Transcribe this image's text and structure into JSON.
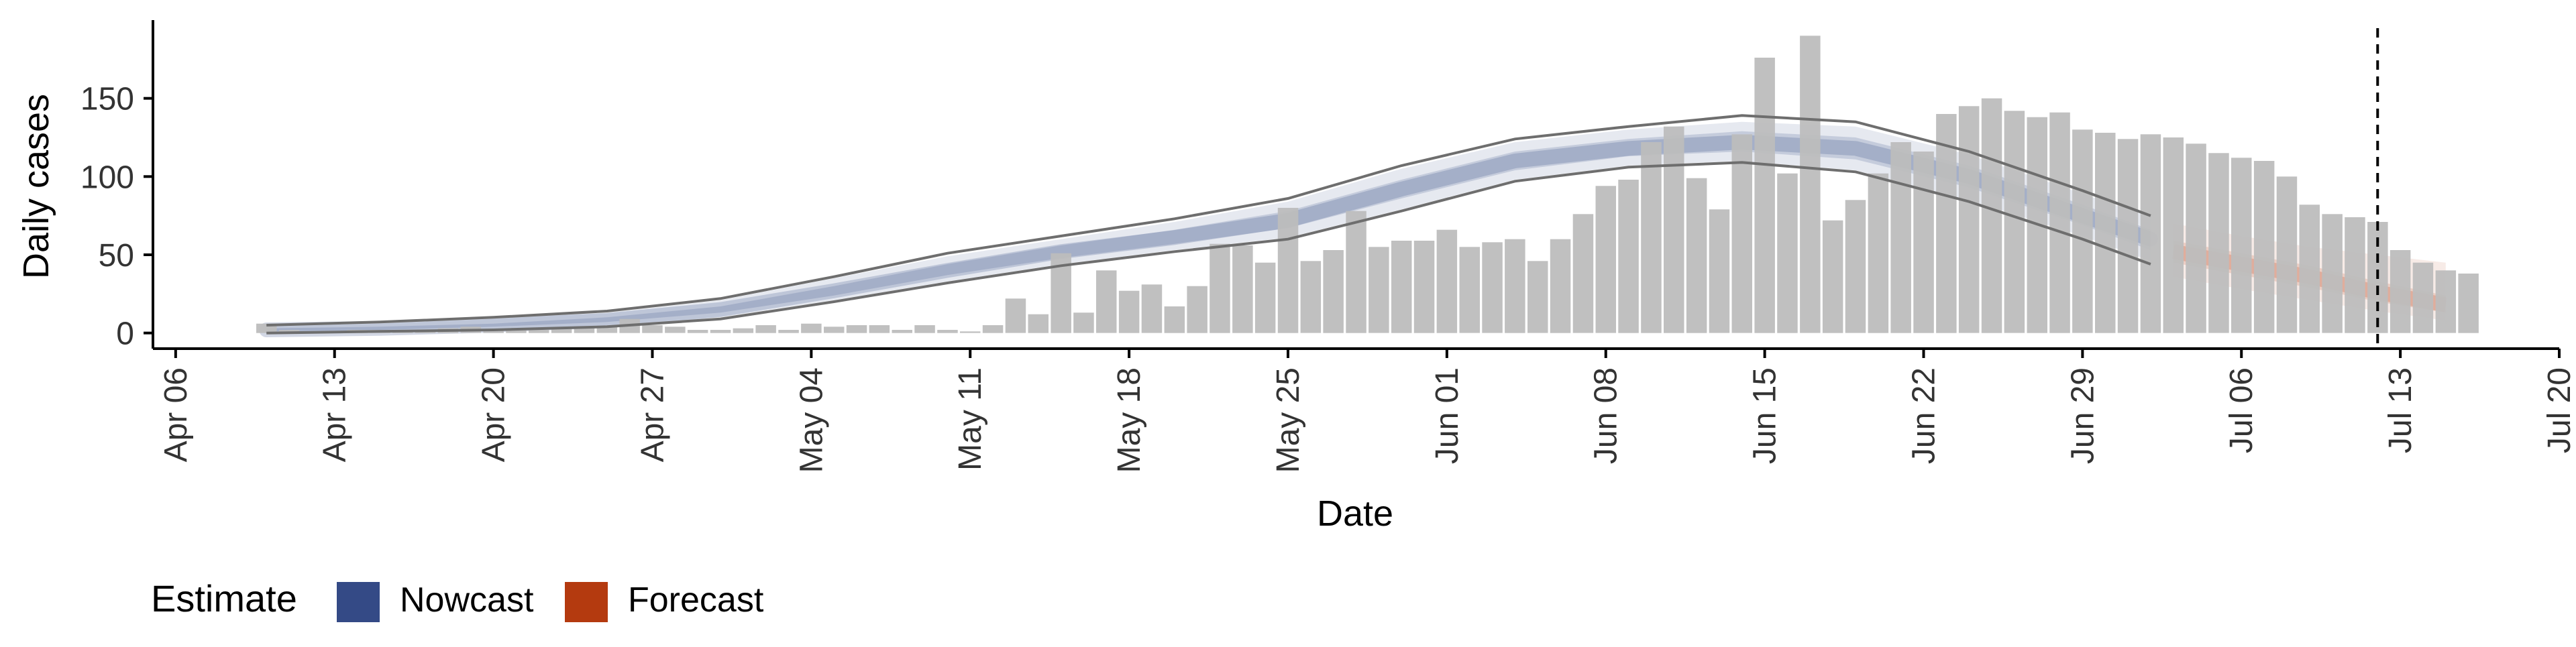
{
  "chart_data": {
    "type": "bar",
    "title": "",
    "xlabel": "Date",
    "ylabel": "Daily cases",
    "x_ticks": [
      "Apr 06",
      "Apr 13",
      "Apr 20",
      "Apr 27",
      "May 04",
      "May 11",
      "May 18",
      "May 25",
      "Jun 01",
      "Jun 08",
      "Jun 15",
      "Jun 22",
      "Jun 29",
      "Jul 06",
      "Jul 13",
      "Jul 20"
    ],
    "y_ticks": [
      0,
      50,
      100,
      150
    ],
    "x_range": [
      "2020-04-05",
      "2020-07-20"
    ],
    "ylim": [
      -10,
      200
    ],
    "grid": false,
    "legend": {
      "position": "bottom-left",
      "title": "Estimate",
      "items": [
        {
          "label": "Nowcast",
          "color": "#344A86"
        },
        {
          "label": "Forecast",
          "color": "#B43A0F"
        }
      ]
    },
    "annotations": [
      {
        "type": "vline",
        "date": "2020-07-12",
        "style": "dashed"
      }
    ],
    "colors": {
      "bars": "#BDBDBD",
      "nowcast": "#344A86",
      "forecast": "#B43A0F",
      "outline": "#6E6E6E"
    },
    "bars": {
      "start_date": "2020-04-10",
      "values": [
        6,
        2,
        1,
        1,
        2,
        2,
        2,
        2,
        3,
        4,
        2,
        2,
        2,
        3,
        3,
        4,
        9,
        5,
        4,
        2,
        2,
        3,
        5,
        2,
        6,
        4,
        5,
        5,
        2,
        5,
        2,
        1,
        5,
        22,
        12,
        51,
        13,
        40,
        27,
        31,
        17,
        30,
        57,
        56,
        45,
        80,
        46,
        53,
        78,
        55,
        59,
        59,
        66,
        55,
        58,
        60,
        46,
        60,
        76,
        94,
        98,
        122,
        132,
        99,
        79,
        127,
        176,
        102,
        190,
        72,
        85,
        102,
        122,
        116,
        140,
        145,
        150,
        142,
        138,
        141,
        130,
        128,
        124,
        127,
        125,
        121,
        115,
        112,
        110,
        100,
        82,
        76,
        74,
        71,
        53,
        45,
        40,
        38
      ]
    },
    "nowcast": {
      "dates": [
        "2020-04-10",
        "2020-04-15",
        "2020-04-20",
        "2020-04-25",
        "2020-04-30",
        "2020-05-05",
        "2020-05-10",
        "2020-05-15",
        "2020-05-20",
        "2020-05-25",
        "2020-05-30",
        "2020-06-04",
        "2020-06-09",
        "2020-06-14",
        "2020-06-19",
        "2020-06-24",
        "2020-06-29",
        "2020-07-02"
      ],
      "median": [
        2,
        3,
        5,
        8,
        15,
        27,
        40,
        52,
        61,
        72,
        92,
        110,
        118,
        122,
        118,
        100,
        75,
        60
      ],
      "lower_50": [
        1,
        2,
        4,
        7,
        13,
        24,
        37,
        48,
        57,
        67,
        86,
        104,
        113,
        116,
        111,
        93,
        69,
        53
      ],
      "upper_50": [
        3,
        4,
        6,
        10,
        17,
        30,
        44,
        56,
        66,
        78,
        98,
        116,
        124,
        129,
        125,
        107,
        82,
        66
      ],
      "lower_90": [
        0,
        1,
        2,
        5,
        10,
        21,
        33,
        44,
        53,
        61,
        79,
        98,
        107,
        110,
        104,
        85,
        62,
        46
      ],
      "upper_90": [
        4,
        6,
        9,
        13,
        21,
        35,
        49,
        60,
        71,
        84,
        105,
        122,
        130,
        135,
        132,
        114,
        89,
        74
      ],
      "outline_lower": [
        0,
        1,
        2,
        4,
        9,
        20,
        32,
        43,
        52,
        60,
        78,
        97,
        106,
        109,
        103,
        84,
        60,
        44
      ],
      "outline_upper": [
        5,
        7,
        10,
        14,
        22,
        36,
        51,
        62,
        73,
        86,
        107,
        124,
        132,
        139,
        135,
        116,
        91,
        75
      ]
    },
    "forecast": {
      "dates": [
        "2020-07-03",
        "2020-07-06",
        "2020-07-09",
        "2020-07-12",
        "2020-07-15"
      ],
      "median": [
        52,
        44,
        36,
        26,
        18
      ],
      "lower_50": [
        45,
        37,
        29,
        20,
        13
      ],
      "upper_50": [
        59,
        51,
        43,
        33,
        24
      ],
      "lower_90": [
        36,
        28,
        21,
        14,
        8
      ],
      "upper_90": [
        70,
        62,
        55,
        50,
        45
      ]
    }
  }
}
